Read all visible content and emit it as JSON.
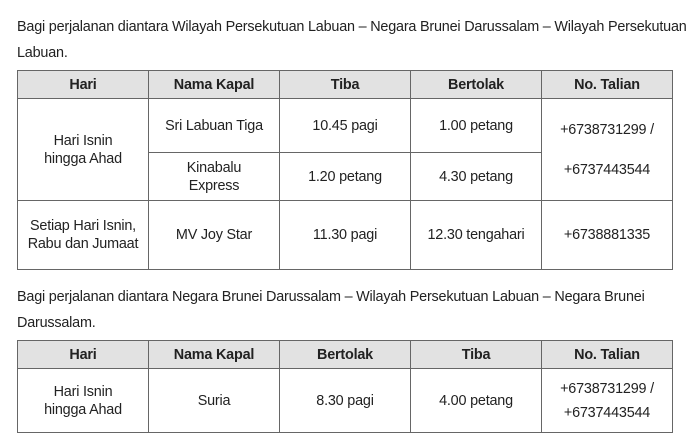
{
  "section1": {
    "intro": "Bagi perjalanan diantara Wilayah Persekutuan Labuan – Negara Brunei Darussalam – Wilayah Persekutuan Labuan.",
    "headers": [
      "Hari",
      "Nama Kapal",
      "Tiba",
      "Bertolak",
      "No. Talian"
    ],
    "group1": {
      "day": "Hari Isnin hingga Ahad",
      "phone": "+6738731299 / +6737443544",
      "rows": [
        {
          "ship": "Sri Labuan Tiga",
          "arrive": "10.45 pagi",
          "depart": "1.00 petang"
        },
        {
          "ship": "Kinabalu Express",
          "arrive": "1.20 petang",
          "depart": "4.30 petang"
        }
      ]
    },
    "group2": {
      "day": "Setiap Hari Isnin, Rabu dan Jumaat",
      "ship": "MV Joy Star",
      "arrive": "11.30 pagi",
      "depart": "12.30 tengahari",
      "phone": "+6738881335"
    }
  },
  "section2": {
    "intro": "Bagi perjalanan diantara Negara Brunei Darussalam – Wilayah Persekutuan Labuan – Negara Brunei Darussalam.",
    "headers": [
      "Hari",
      "Nama Kapal",
      "Bertolak",
      "Tiba",
      "No. Talian"
    ],
    "row": {
      "day": "Hari Isnin hingga Ahad",
      "ship": "Suria",
      "depart": "8.30 pagi",
      "arrive": "4.00 petang",
      "phone_1": "+6738731299 /",
      "phone_2": "+6737443544"
    }
  }
}
